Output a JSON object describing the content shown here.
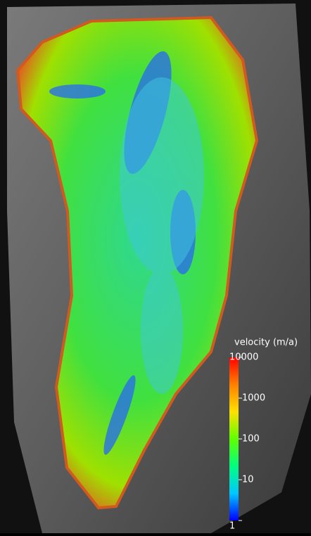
{
  "colorbar": {
    "title": "velocity (m/a)",
    "ticks": [
      1,
      10,
      100,
      1000,
      10000
    ],
    "range": [
      1,
      10000
    ],
    "log": true,
    "colors": [
      "#0000ff",
      "#00c8ff",
      "#00ff80",
      "#60ff00",
      "#ffe000",
      "#ff8000",
      "#ff0000"
    ]
  }
}
